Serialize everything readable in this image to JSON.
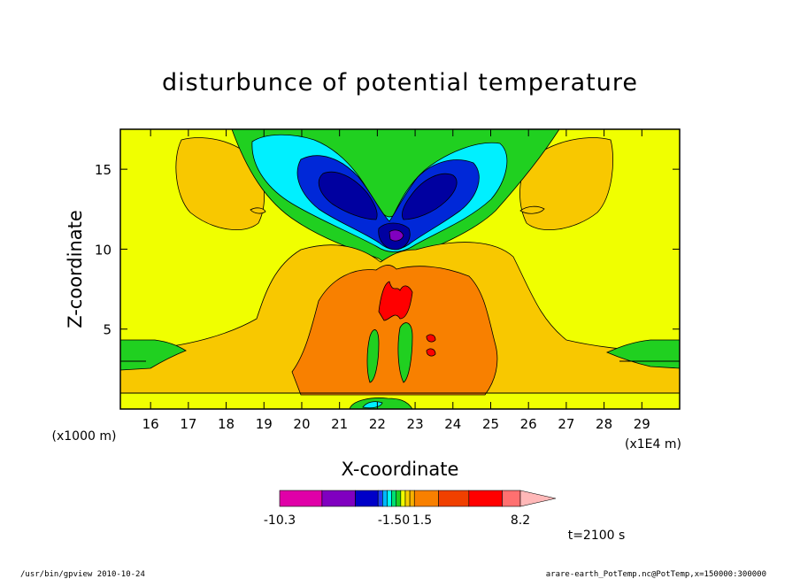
{
  "chart_data": {
    "type": "heatmap",
    "title": "disturbunce of potential temperature",
    "xlabel": "X-coordinate",
    "ylabel": "Z-coordinate",
    "xlim": [
      152000,
      300000
    ],
    "ylim": [
      0,
      17.5
    ],
    "x_ticks": [
      "16",
      "17",
      "18",
      "19",
      "20",
      "21",
      "22",
      "23",
      "24",
      "25",
      "26",
      "27",
      "28",
      "29"
    ],
    "y_ticks": [
      "5",
      "10",
      "15"
    ],
    "x_unit_label": "(x1E4 m)",
    "y_unit_label": "(x1000 m)",
    "colorbar": {
      "labels": [
        "-10.3",
        "-1.50",
        "1.5",
        "8.2"
      ],
      "colors": [
        "#e000a8",
        "#8000c0",
        "#0000c8",
        "#2040f0",
        "#00b8ff",
        "#00ffff",
        "#00e070",
        "#20d020",
        "#f0ff00",
        "#f8d000",
        "#f8b000",
        "#f88000",
        "#f04000",
        "#ff0000",
        "#ff7070",
        "#ffb8b8"
      ]
    },
    "contour_levels": [
      -10.3,
      -7.4,
      -4.5,
      -1.5,
      -1.0,
      -0.5,
      0.5,
      1.0,
      1.5,
      4.2,
      6.5,
      8.2
    ],
    "time_label": "t=2100 s",
    "footer_left": "/usr/bin/gpview   2010-10-24",
    "footer_right": "arare-earth_PotTemp.nc@PotTemp,x=150000:300000"
  }
}
